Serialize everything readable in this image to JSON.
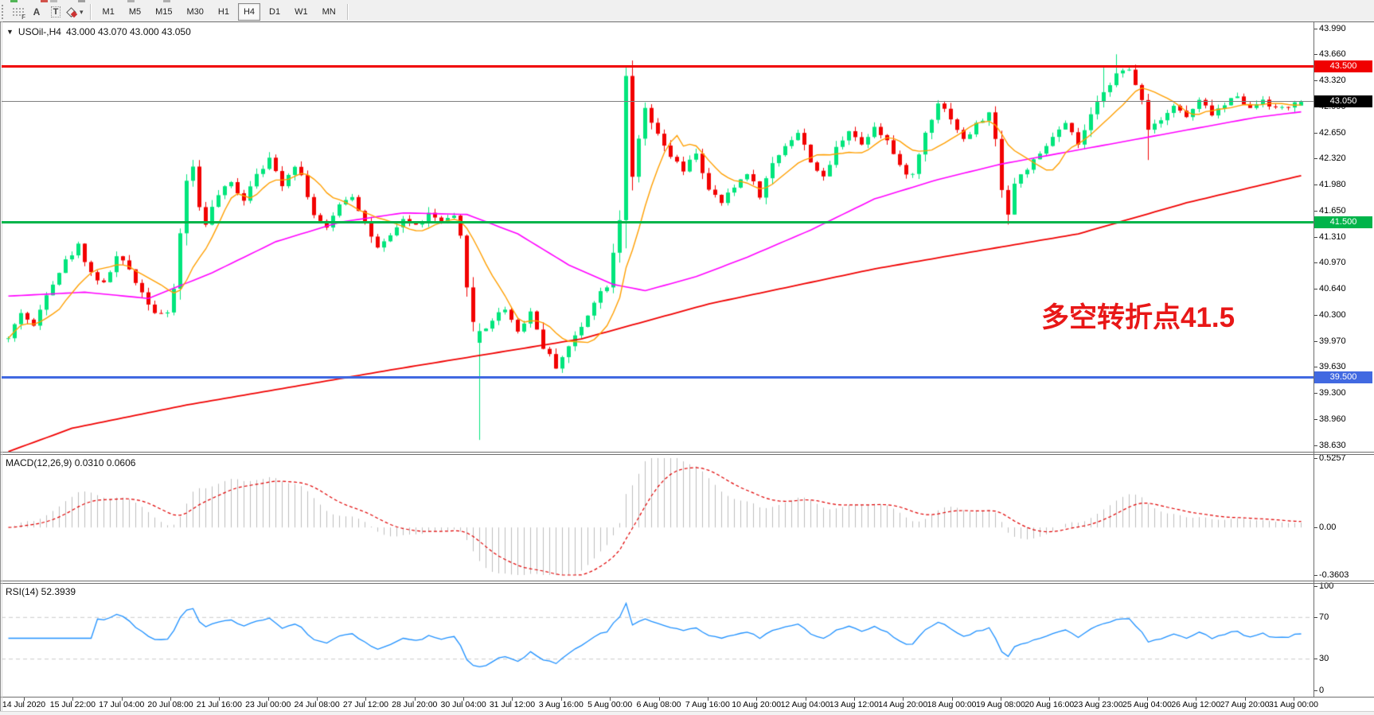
{
  "toolbar": {
    "grid_tool_letter": "F",
    "text_tool_a": "A",
    "text_tool_t": "T",
    "caret": "▾",
    "timeframes": [
      "M1",
      "M5",
      "M15",
      "M30",
      "H1",
      "H4",
      "D1",
      "W1",
      "MN"
    ],
    "active_timeframe": "H4"
  },
  "chart": {
    "expand_marker": "▼",
    "title_symbol": "USOil-,H4",
    "title_ohlc": "43.000 43.070 43.000 43.050",
    "annotation": {
      "text": "多空转折点41.5",
      "color": "#e81717"
    },
    "price_axis_labels": [
      "43.990",
      "43.660",
      "43.320",
      "42.990",
      "42.650",
      "42.320",
      "41.980",
      "41.650",
      "41.310",
      "40.970",
      "40.640",
      "40.300",
      "39.970",
      "39.630",
      "39.300",
      "38.960",
      "38.630"
    ],
    "levels": [
      {
        "name": "resistance-line-43500",
        "price": 43.5,
        "badge": "43.500",
        "color": "#f00000",
        "badge_bg": "#f00000",
        "badge_text": "#ffffff",
        "thickness": 3
      },
      {
        "name": "current-price-line-43050",
        "price": 43.05,
        "badge": "43.050",
        "color": "#808080",
        "badge_bg": "#000000",
        "badge_text": "#ffffff",
        "thickness": 1
      },
      {
        "name": "pivot-line-41500",
        "price": 41.5,
        "badge": "41.500",
        "color": "#00b44a",
        "badge_bg": "#00b44a",
        "badge_text": "#ffffff",
        "thickness": 3
      },
      {
        "name": "support-line-39500",
        "price": 39.5,
        "badge": "39.500",
        "color": "#4169e1",
        "badge_bg": "#4169e1",
        "badge_text": "#ffffff",
        "thickness": 3
      }
    ]
  },
  "macd_panel": {
    "label": "MACD(12,26,9) 0.0310 0.0606",
    "axis_labels": [
      "0.5257",
      "0.00",
      "-0.3603"
    ]
  },
  "rsi_panel": {
    "label": "RSI(14) 52.3939",
    "axis_labels": [
      "100",
      "70",
      "30",
      "0"
    ],
    "level_lines": [
      70,
      30
    ]
  },
  "time_axis_labels": [
    "14 Jul 2020",
    "15 Jul 22:00",
    "17 Jul 04:00",
    "20 Jul 08:00",
    "21 Jul 16:00",
    "23 Jul 00:00",
    "24 Jul 08:00",
    "27 Jul 12:00",
    "28 Jul 20:00",
    "30 Jul 04:00",
    "31 Jul 12:00",
    "3 Aug 16:00",
    "5 Aug 00:00",
    "6 Aug 08:00",
    "7 Aug 16:00",
    "10 Aug 20:00",
    "12 Aug 04:00",
    "13 Aug 12:00",
    "14 Aug 20:00",
    "18 Aug 00:00",
    "19 Aug 08:00",
    "20 Aug 16:00",
    "23 Aug 23:00",
    "25 Aug 04:00",
    "26 Aug 12:00",
    "27 Aug 20:00",
    "31 Aug 00:00"
  ],
  "chart_data": {
    "type": "candlestick",
    "symbol": "USOil",
    "timeframe": "H4",
    "ohlc_current": {
      "open": 43.0,
      "high": 43.07,
      "low": 43.0,
      "close": 43.05
    },
    "bars": 204,
    "price_range_top": 43.99,
    "price_range_bottom": 38.63,
    "macd_range_top": 0.5257,
    "macd_range_bottom": -0.3603,
    "macd_current": [
      0.031,
      0.0606
    ],
    "rsi_current": 52.3939,
    "price_path": [
      [
        0,
        40.0
      ],
      [
        2,
        40.35
      ],
      [
        4,
        40.15
      ],
      [
        6,
        40.6
      ],
      [
        9,
        41.0
      ],
      [
        11,
        41.2
      ],
      [
        13,
        40.85
      ],
      [
        15,
        40.7
      ],
      [
        17,
        41.05
      ],
      [
        19,
        40.9
      ],
      [
        21,
        40.6
      ],
      [
        23,
        40.35
      ],
      [
        25,
        40.3
      ],
      [
        26,
        40.65
      ],
      [
        27,
        41.35
      ],
      [
        28,
        42.05
      ],
      [
        29,
        42.2
      ],
      [
        30,
        41.7
      ],
      [
        31,
        41.5
      ],
      [
        33,
        41.85
      ],
      [
        35,
        42.0
      ],
      [
        37,
        41.8
      ],
      [
        39,
        42.15
      ],
      [
        41,
        42.3
      ],
      [
        43,
        42.0
      ],
      [
        45,
        42.25
      ],
      [
        46,
        42.1
      ],
      [
        48,
        41.6
      ],
      [
        50,
        41.4
      ],
      [
        52,
        41.75
      ],
      [
        54,
        41.85
      ],
      [
        56,
        41.5
      ],
      [
        58,
        41.15
      ],
      [
        60,
        41.3
      ],
      [
        62,
        41.55
      ],
      [
        64,
        41.45
      ],
      [
        66,
        41.6
      ],
      [
        68,
        41.5
      ],
      [
        70,
        41.55
      ],
      [
        71,
        41.3
      ],
      [
        72,
        40.7
      ],
      [
        73,
        40.2
      ],
      [
        74,
        40.05
      ],
      [
        76,
        40.25
      ],
      [
        78,
        40.4
      ],
      [
        80,
        40.1
      ],
      [
        82,
        40.35
      ],
      [
        84,
        39.9
      ],
      [
        86,
        39.65
      ],
      [
        88,
        39.9
      ],
      [
        90,
        40.15
      ],
      [
        92,
        40.5
      ],
      [
        94,
        40.7
      ],
      [
        96,
        41.55
      ],
      [
        97,
        43.4
      ],
      [
        98,
        42.05
      ],
      [
        99,
        42.55
      ],
      [
        100,
        42.95
      ],
      [
        102,
        42.6
      ],
      [
        104,
        42.35
      ],
      [
        106,
        42.15
      ],
      [
        108,
        42.4
      ],
      [
        110,
        41.9
      ],
      [
        112,
        41.75
      ],
      [
        114,
        41.95
      ],
      [
        116,
        42.15
      ],
      [
        118,
        41.85
      ],
      [
        120,
        42.25
      ],
      [
        122,
        42.5
      ],
      [
        124,
        42.65
      ],
      [
        126,
        42.3
      ],
      [
        128,
        42.05
      ],
      [
        130,
        42.45
      ],
      [
        132,
        42.7
      ],
      [
        134,
        42.5
      ],
      [
        136,
        42.75
      ],
      [
        138,
        42.55
      ],
      [
        140,
        42.2
      ],
      [
        142,
        42.1
      ],
      [
        144,
        42.65
      ],
      [
        146,
        43.05
      ],
      [
        148,
        42.85
      ],
      [
        150,
        42.55
      ],
      [
        152,
        42.75
      ],
      [
        154,
        42.9
      ],
      [
        155,
        42.55
      ],
      [
        156,
        41.95
      ],
      [
        157,
        41.6
      ],
      [
        158,
        42.0
      ],
      [
        160,
        42.2
      ],
      [
        162,
        42.35
      ],
      [
        164,
        42.6
      ],
      [
        166,
        42.75
      ],
      [
        168,
        42.5
      ],
      [
        170,
        42.85
      ],
      [
        172,
        43.2
      ],
      [
        174,
        43.4
      ],
      [
        176,
        43.45
      ],
      [
        178,
        43.1
      ],
      [
        179,
        42.7
      ],
      [
        181,
        42.85
      ],
      [
        183,
        43.0
      ],
      [
        185,
        42.85
      ],
      [
        187,
        43.05
      ],
      [
        189,
        42.9
      ],
      [
        191,
        43.0
      ],
      [
        193,
        43.15
      ],
      [
        195,
        42.95
      ],
      [
        197,
        43.1
      ],
      [
        199,
        42.95
      ],
      [
        201,
        43.0
      ],
      [
        203,
        43.05
      ]
    ],
    "special_bars": {
      "74": {
        "o": 39.95,
        "c": 40.1,
        "h": 40.2,
        "l": 38.7
      },
      "97": {
        "h": 43.5
      },
      "98": {
        "h": 43.58
      },
      "157": {
        "l": 41.47
      },
      "172": {
        "h": 43.5
      },
      "174": {
        "h": 43.66
      },
      "176": {
        "h": 43.5
      },
      "179": {
        "l": 42.3
      },
      "203": {
        "o": 43.0,
        "c": 43.05,
        "h": 43.07,
        "l": 43.0
      }
    },
    "ma_slow_path": [
      [
        0,
        38.55
      ],
      [
        10,
        38.85
      ],
      [
        28,
        39.15
      ],
      [
        60,
        39.6
      ],
      [
        90,
        40.0
      ],
      [
        110,
        40.45
      ],
      [
        136,
        40.9
      ],
      [
        150,
        41.1
      ],
      [
        168,
        41.35
      ],
      [
        185,
        41.75
      ],
      [
        203,
        42.1
      ]
    ],
    "ma_mid_path": [
      [
        0,
        40.55
      ],
      [
        12,
        40.6
      ],
      [
        22,
        40.52
      ],
      [
        32,
        40.85
      ],
      [
        42,
        41.25
      ],
      [
        52,
        41.5
      ],
      [
        62,
        41.62
      ],
      [
        72,
        41.6
      ],
      [
        80,
        41.35
      ],
      [
        88,
        40.95
      ],
      [
        95,
        40.7
      ],
      [
        100,
        40.62
      ],
      [
        108,
        40.8
      ],
      [
        116,
        41.05
      ],
      [
        126,
        41.4
      ],
      [
        136,
        41.8
      ],
      [
        146,
        42.05
      ],
      [
        156,
        42.25
      ],
      [
        166,
        42.4
      ],
      [
        176,
        42.55
      ],
      [
        186,
        42.7
      ],
      [
        196,
        42.85
      ],
      [
        203,
        42.92
      ]
    ],
    "colors": {
      "up": "#00e57c",
      "down": "#f20000",
      "ma_fast": "#ff9f00",
      "ma_mid": "#ff00ff",
      "ma_slow": "#f00000",
      "macd_hist": "#bdbdbd",
      "macd_signal": "#e00000",
      "rsi": "#1e90ff",
      "rsi_levels": "#c8c8c8"
    }
  }
}
